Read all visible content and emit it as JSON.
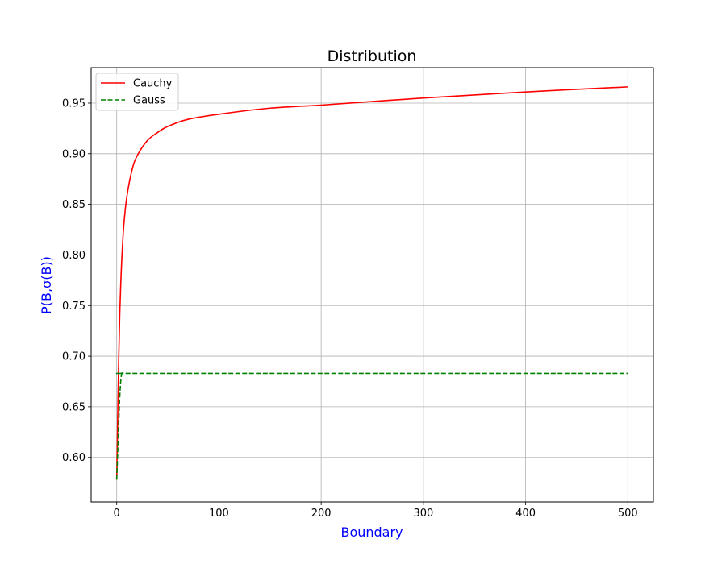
{
  "chart_data": {
    "type": "line",
    "title": "Distribution",
    "xlabel": "Boundary",
    "ylabel": "P(B,σ(B))",
    "xlabel_color": "#0000ff",
    "ylabel_color": "#0000ff",
    "xlim": [
      -25,
      525
    ],
    "ylim": [
      0.556,
      0.985
    ],
    "x_ticks": [
      0,
      100,
      200,
      300,
      400,
      500
    ],
    "x_tick_labels": [
      "0",
      "100",
      "200",
      "300",
      "400",
      "500"
    ],
    "y_ticks": [
      0.6,
      0.65,
      0.7,
      0.75,
      0.8,
      0.85,
      0.9,
      0.95
    ],
    "y_tick_labels": [
      "0.60",
      "0.65",
      "0.70",
      "0.75",
      "0.80",
      "0.85",
      "0.90",
      "0.95"
    ],
    "grid": true,
    "legend_position": "top-left",
    "series": [
      {
        "name": "Cauchy",
        "color": "#ff0000",
        "style": "solid",
        "x": [
          0,
          1,
          2,
          3,
          4,
          5,
          7,
          10,
          15,
          20,
          30,
          40,
          50,
          70,
          100,
          150,
          200,
          300,
          400,
          500
        ],
        "y": [
          0.578,
          0.641,
          0.698,
          0.742,
          0.772,
          0.796,
          0.83,
          0.858,
          0.884,
          0.898,
          0.913,
          0.921,
          0.927,
          0.934,
          0.939,
          0.945,
          0.948,
          0.955,
          0.961,
          0.966
        ]
      },
      {
        "name": "Gauss",
        "color": "#008000",
        "style": "dashed",
        "x": [
          0,
          1,
          2,
          3,
          4,
          5,
          6,
          7,
          100,
          200,
          300,
          400,
          500
        ],
        "y": [
          0.578,
          0.606,
          0.634,
          0.66,
          0.676,
          0.683,
          0.683,
          0.683,
          0.683,
          0.683,
          0.683,
          0.683,
          0.683
        ]
      }
    ]
  }
}
